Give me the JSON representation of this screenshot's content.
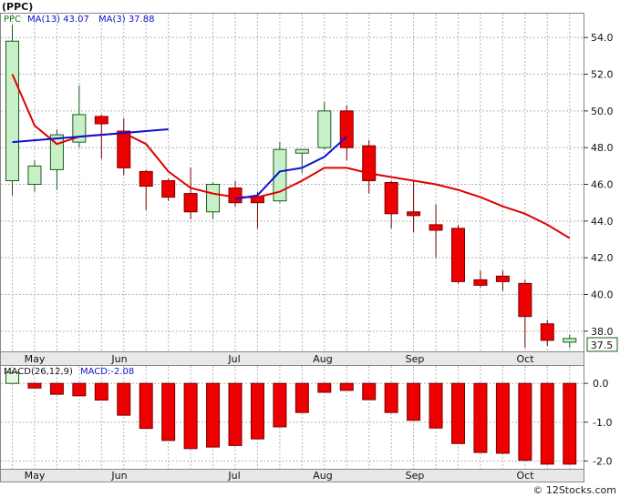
{
  "ticker_label": "(PPC)",
  "copyright": "© 12Stocks.com",
  "colors": {
    "up_fill": "#c8f0c8",
    "up_stroke": "#1a5c1a",
    "down_fill": "#ee0000",
    "down_stroke": "#7a0000",
    "ma_slow": "#e00000",
    "ma_fast": "#1010d0",
    "grid": "#b4b4b4",
    "macd_up": "#e6f8e6",
    "macd_down": "#ee0000"
  },
  "chart_data": [
    {
      "type": "candlestick",
      "title": "(PPC)",
      "legend": [
        {
          "text": "PPC",
          "color": "#1a7a1a"
        },
        {
          "text": "MA(13)  43.07",
          "color": "#1010d0"
        },
        {
          "text": "MA(3)  37.88",
          "color": "#1010d0"
        }
      ],
      "last_price_label": "37.5",
      "ylim": [
        36.9,
        55.3
      ],
      "yticks": [
        "38.0",
        "40.0",
        "42.0",
        "44.0",
        "46.0",
        "48.0",
        "50.0",
        "52.0",
        "54.0"
      ],
      "xlabels": [
        "May",
        "Jun",
        "Jul",
        "Aug",
        "Sep",
        "Oct"
      ],
      "x_count": 26,
      "candles": [
        {
          "o": 46.2,
          "h": 54.7,
          "l": 45.4,
          "c": 53.8
        },
        {
          "o": 46.0,
          "h": 47.3,
          "l": 45.6,
          "c": 47.0
        },
        {
          "o": 46.8,
          "h": 49.0,
          "l": 45.7,
          "c": 48.7
        },
        {
          "o": 48.3,
          "h": 51.4,
          "l": 48.0,
          "c": 49.8
        },
        {
          "o": 49.7,
          "h": 49.8,
          "l": 47.4,
          "c": 49.3
        },
        {
          "o": 48.9,
          "h": 49.6,
          "l": 46.5,
          "c": 46.9
        },
        {
          "o": 46.7,
          "h": 46.8,
          "l": 44.6,
          "c": 45.9
        },
        {
          "o": 46.2,
          "h": 46.3,
          "l": 45.1,
          "c": 45.3
        },
        {
          "o": 45.5,
          "h": 46.9,
          "l": 44.1,
          "c": 44.5
        },
        {
          "o": 44.5,
          "h": 46.1,
          "l": 44.1,
          "c": 46.0
        },
        {
          "o": 45.8,
          "h": 46.2,
          "l": 44.8,
          "c": 45.0
        },
        {
          "o": 45.3,
          "h": 45.6,
          "l": 43.6,
          "c": 45.0
        },
        {
          "o": 45.1,
          "h": 48.3,
          "l": 45.0,
          "c": 47.9
        },
        {
          "o": 47.7,
          "h": 47.8,
          "l": 46.6,
          "c": 47.9
        },
        {
          "o": 48.0,
          "h": 50.5,
          "l": 47.9,
          "c": 50.0
        },
        {
          "o": 50.0,
          "h": 50.3,
          "l": 47.3,
          "c": 48.0
        },
        {
          "o": 48.1,
          "h": 48.4,
          "l": 45.5,
          "c": 46.2
        },
        {
          "o": 46.1,
          "h": 46.2,
          "l": 43.6,
          "c": 44.4
        },
        {
          "o": 44.5,
          "h": 46.2,
          "l": 43.4,
          "c": 44.3
        },
        {
          "o": 43.8,
          "h": 44.9,
          "l": 42.0,
          "c": 43.5
        },
        {
          "o": 43.6,
          "h": 43.8,
          "l": 40.6,
          "c": 40.7
        },
        {
          "o": 40.8,
          "h": 41.3,
          "l": 40.4,
          "c": 40.5
        },
        {
          "o": 41.0,
          "h": 41.3,
          "l": 40.2,
          "c": 40.7
        },
        {
          "o": 40.6,
          "h": 40.8,
          "l": 37.1,
          "c": 38.8
        },
        {
          "o": 38.4,
          "h": 38.6,
          "l": 37.2,
          "c": 37.5
        },
        {
          "o": 37.4,
          "h": 37.8,
          "l": 37.1,
          "c": 37.6
        }
      ],
      "series": [
        {
          "name": "MA(13)",
          "color": "#e00000",
          "points": [
            [
              0,
              52.0
            ],
            [
              1,
              49.2
            ],
            [
              2,
              48.2
            ],
            [
              3,
              48.6
            ],
            [
              4,
              48.7
            ],
            [
              5,
              48.8
            ],
            [
              6,
              48.2
            ],
            [
              7,
              46.7
            ],
            [
              8,
              45.8
            ],
            [
              9,
              45.5
            ],
            [
              10,
              45.3
            ],
            [
              11,
              45.3
            ],
            [
              12,
              45.6
            ],
            [
              13,
              46.2
            ],
            [
              14,
              46.9
            ],
            [
              15,
              46.9
            ],
            [
              16,
              46.6
            ],
            [
              17,
              46.4
            ],
            [
              18,
              46.2
            ],
            [
              19,
              46.0
            ],
            [
              20,
              45.7
            ],
            [
              21,
              45.3
            ],
            [
              22,
              44.8
            ],
            [
              23,
              44.4
            ],
            [
              24,
              43.8
            ],
            [
              25,
              43.07
            ]
          ]
        },
        {
          "name": "MA(3)",
          "color": "#1010d0",
          "points": [
            [
              0,
              48.3
            ],
            [
              1,
              48.4
            ],
            [
              2,
              48.5
            ],
            [
              3,
              48.6
            ],
            [
              4,
              48.7
            ],
            [
              5,
              48.8
            ],
            [
              6,
              48.9
            ],
            [
              7,
              49.0
            ]
          ]
        },
        {
          "name": "MA(3)",
          "color": "#1010d0",
          "points": [
            [
              10,
              45.2
            ],
            [
              11,
              45.4
            ],
            [
              12,
              46.7
            ],
            [
              13,
              46.9
            ],
            [
              14,
              47.5
            ],
            [
              15,
              48.6
            ]
          ]
        }
      ]
    },
    {
      "type": "bar",
      "legend": [
        {
          "text": "MACD(26,12,9)",
          "color": "#111111"
        },
        {
          "text": "MACD:-2.08",
          "color": "#1010d0"
        }
      ],
      "ylim": [
        -2.2,
        0.45
      ],
      "yticks": [
        "0.0",
        "-1.0",
        "-2.0"
      ],
      "xlabels": [
        "May",
        "Jun",
        "Jul",
        "Aug",
        "Sep",
        "Oct"
      ],
      "values": [
        0.28,
        -0.12,
        -0.28,
        -0.32,
        -0.43,
        -0.82,
        -1.16,
        -1.47,
        -1.68,
        -1.64,
        -1.6,
        -1.43,
        -1.12,
        -0.75,
        -0.23,
        -0.18,
        -0.42,
        -0.75,
        -0.95,
        -1.15,
        -1.55,
        -1.78,
        -1.8,
        -1.98,
        -2.08,
        -2.08
      ]
    }
  ]
}
